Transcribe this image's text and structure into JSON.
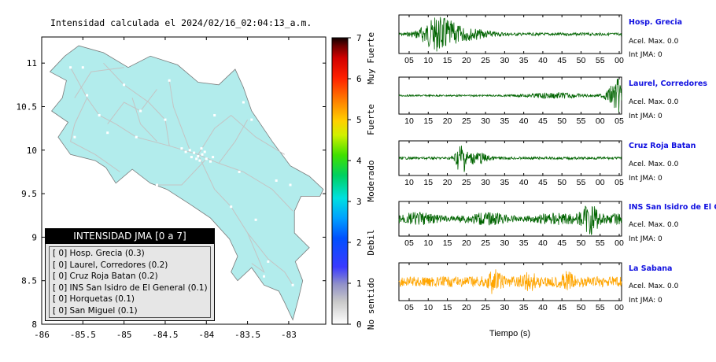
{
  "map": {
    "title": "Intensidad calculada el 2024/02/16_02:04:13_a.m.",
    "x_ticks": [
      "-86",
      "-85.5",
      "-85",
      "-84.5",
      "-84",
      "-83.5",
      "-83"
    ],
    "y_ticks": [
      "11",
      "10.5",
      "10",
      "9.5",
      "9",
      "8.5",
      "8"
    ],
    "land_color": "#b2ecec",
    "legend": {
      "header": "INTENSIDAD JMA [0 a 7]",
      "items": [
        {
          "text": "[ 0]  Hosp. Grecia (0.3)"
        },
        {
          "text": "[ 0]  Laurel, Corredores (0.2)"
        },
        {
          "text": "[ 0]  Cruz Roja Batan (0.2)"
        },
        {
          "text": "[ 0]  INS San Isidro de El General (0.1)"
        },
        {
          "text": "[ 0]  Horquetas (0.1)"
        },
        {
          "text": "[ 0]  San Miguel (0.1)"
        }
      ]
    }
  },
  "colorbar": {
    "ticks": [
      "7",
      "6",
      "5",
      "4",
      "3",
      "2",
      "1",
      "0"
    ],
    "categories": [
      "Muy Fuerte",
      "Fuerte",
      "Moderado",
      "Debil",
      "No sentido"
    ]
  },
  "chart_data": [
    {
      "type": "heatmap",
      "title": "Intensidad calculada el 2024/02/16_02:04:13_a.m.",
      "xlim": [
        -86,
        -82.55
      ],
      "ylim": [
        8,
        11.3
      ],
      "colorbar_range": [
        0,
        7
      ],
      "stations": [
        {
          "name": "Hosp. Grecia",
          "jma": 0,
          "value": 0.3
        },
        {
          "name": "Laurel, Corredores",
          "jma": 0,
          "value": 0.2
        },
        {
          "name": "Cruz Roja Batan",
          "jma": 0,
          "value": 0.2
        },
        {
          "name": "INS San Isidro de El General",
          "jma": 0,
          "value": 0.1
        },
        {
          "name": "Horquetas",
          "jma": 0,
          "value": 0.1
        },
        {
          "name": "San Miguel",
          "jma": 0,
          "value": 0.1
        }
      ]
    },
    {
      "type": "line",
      "xlabel": "Tiempo (s)",
      "series": [
        {
          "name": "Hosp. Grecia",
          "color": "#006400",
          "ticks": [
            "05",
            "10",
            "15",
            "20",
            "25",
            "30",
            "35",
            "40",
            "45",
            "50",
            "55",
            "00"
          ],
          "acel_label": "Acel. Max. 0.0",
          "jma_label": "Int JMA: 0"
        },
        {
          "name": "Laurel, Corredores",
          "color": "#006400",
          "ticks": [
            "10",
            "15",
            "20",
            "25",
            "30",
            "35",
            "40",
            "45",
            "50",
            "55",
            "00",
            "05"
          ],
          "acel_label": "Acel. Max. 0.0",
          "jma_label": "Int JMA: 0"
        },
        {
          "name": "Cruz Roja Batan",
          "color": "#006400",
          "ticks": [
            "10",
            "15",
            "20",
            "25",
            "30",
            "35",
            "40",
            "45",
            "50",
            "55",
            "00",
            "05"
          ],
          "acel_label": "Acel. Max. 0.0",
          "jma_label": "Int JMA: 0"
        },
        {
          "name": "INS San Isidro de El General",
          "color": "#006400",
          "ticks": [
            "05",
            "10",
            "15",
            "20",
            "25",
            "30",
            "35",
            "40",
            "45",
            "50",
            "55",
            "00"
          ],
          "acel_label": "Acel. Max. 0.0",
          "jma_label": "Int JMA: 0"
        },
        {
          "name": "La Sabana",
          "color": "#ffa500",
          "ticks": [
            "05",
            "10",
            "15",
            "20",
            "25",
            "30",
            "35",
            "40",
            "45",
            "50",
            "55",
            "00"
          ],
          "acel_label": "Acel. Max. 0.0",
          "jma_label": "Int JMA: 0"
        }
      ]
    }
  ]
}
